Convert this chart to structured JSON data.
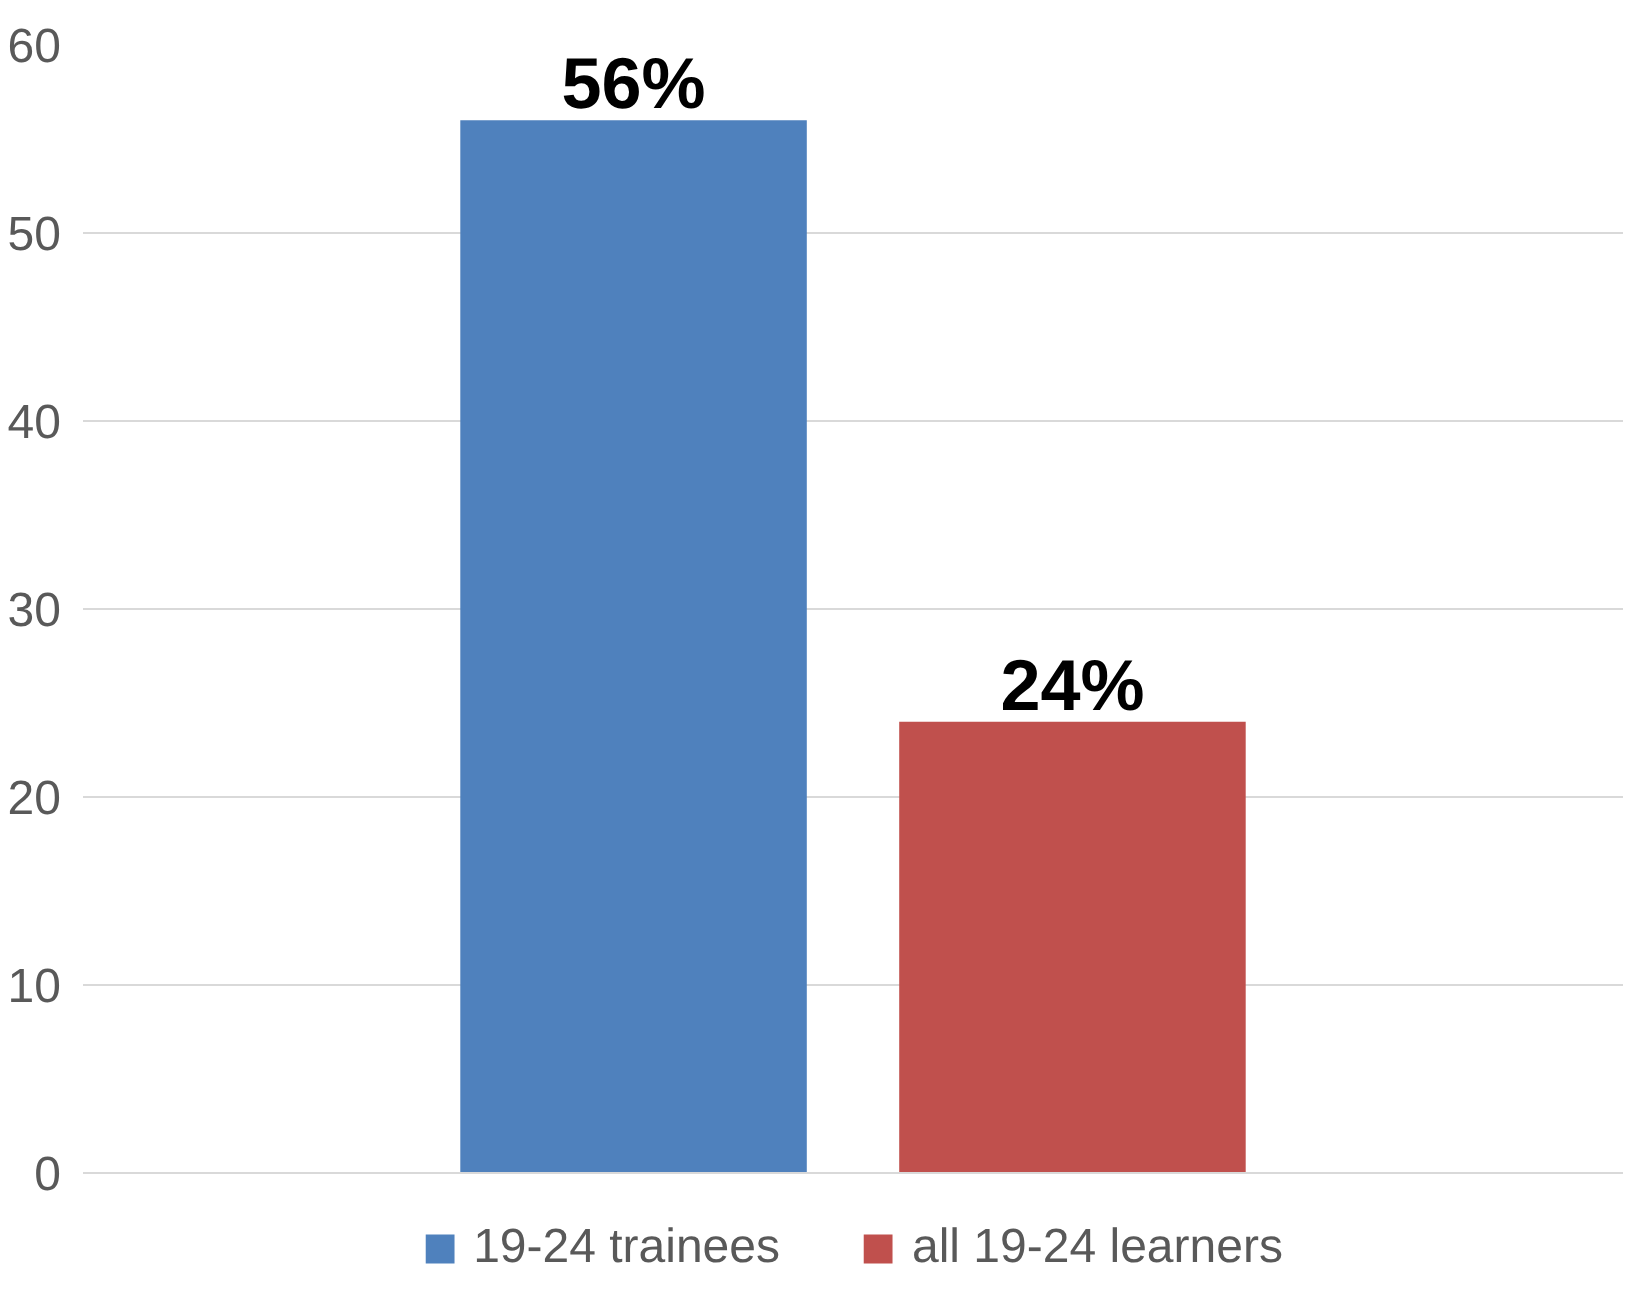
{
  "chart_data": {
    "type": "bar",
    "categories": [
      null
    ],
    "series": [
      {
        "name": "19-24 trainees",
        "color": "#4f81bd",
        "values": [
          56
        ],
        "value_labels": [
          "56%"
        ]
      },
      {
        "name": "all 19-24 learners",
        "color": "#c0504d",
        "values": [
          24
        ],
        "value_labels": [
          "24%"
        ]
      }
    ],
    "ylim": [
      0,
      60
    ],
    "yticks": [
      0,
      10,
      20,
      30,
      40,
      50,
      60
    ],
    "grid": "y",
    "legend": "bottom"
  }
}
